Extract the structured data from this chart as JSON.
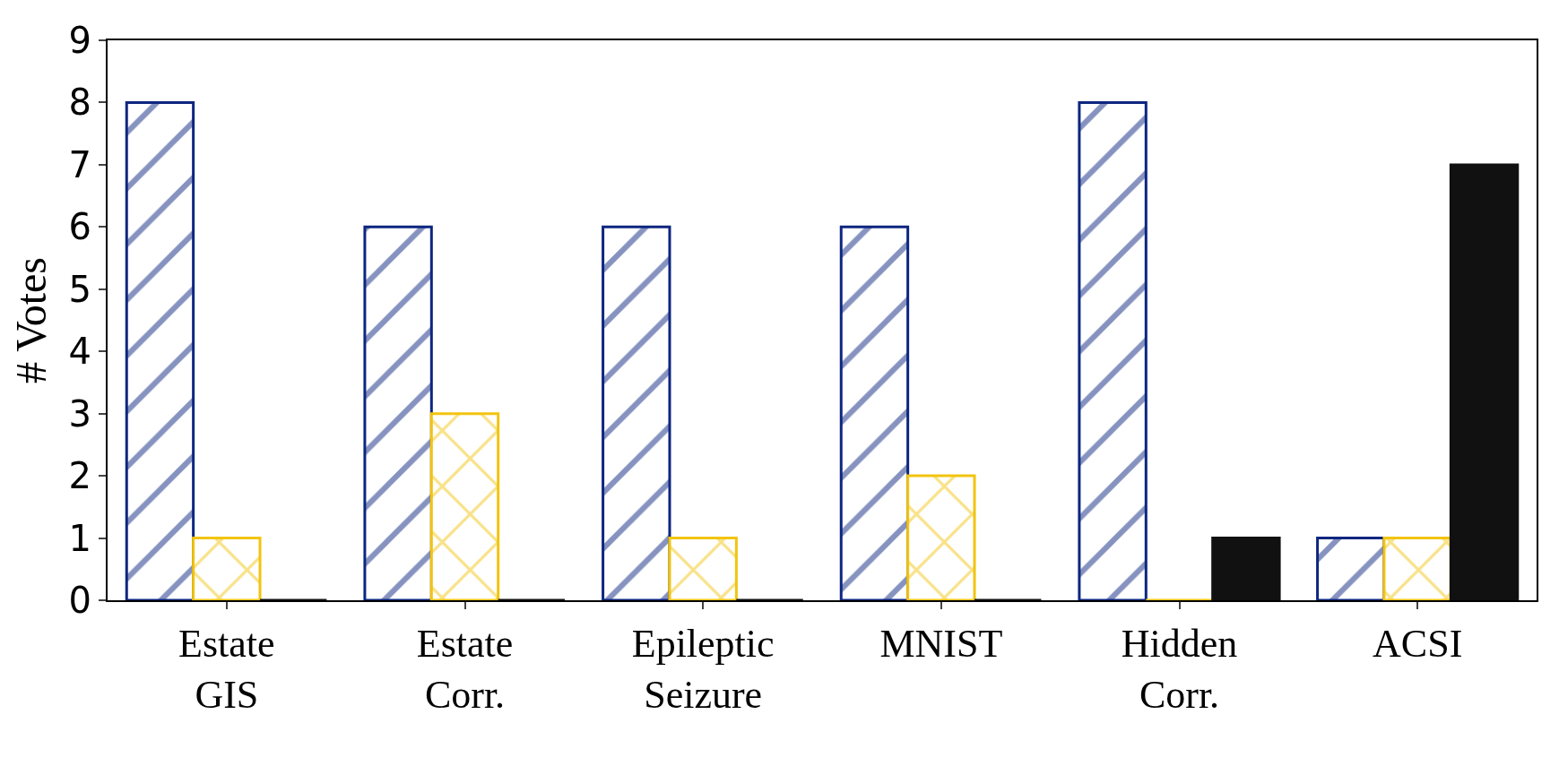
{
  "chart_data": {
    "type": "bar",
    "ylabel": "# Votes",
    "categories": [
      "Estate\nGIS",
      "Estate\nCorr.",
      "Epileptic\nSeizure",
      "MNIST",
      "Hidden\nCorr.",
      "ACSI"
    ],
    "series": [
      {
        "color": "#0d2680",
        "values": [
          8,
          6,
          6,
          6,
          8,
          1
        ]
      },
      {
        "color": "#f2c40f",
        "values": [
          1,
          3,
          1,
          2,
          0,
          1
        ]
      },
      {
        "color": "#111111",
        "values": [
          0,
          0,
          0,
          0,
          1,
          7
        ]
      }
    ],
    "ylim": [
      0,
      9
    ],
    "yticks": [
      0,
      1,
      2,
      3,
      4,
      5,
      6,
      7,
      8,
      9
    ]
  }
}
